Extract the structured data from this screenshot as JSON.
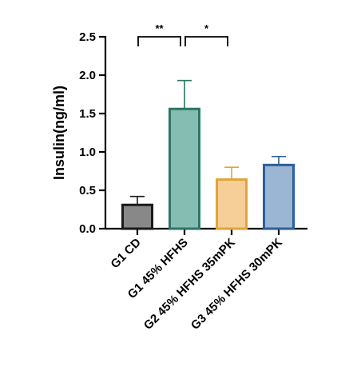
{
  "chart_data": {
    "type": "bar",
    "ylabel": "Insulin(ng/ml)",
    "ylim": [
      0,
      2.5
    ],
    "yticks": [
      "0.0",
      "0.5",
      "1.0",
      "1.5",
      "2.0",
      "2.5"
    ],
    "categories": [
      "G1 CD",
      "G1 45% HFHS",
      "G2 45% HFHS 35mPK",
      "G3 45% HFHS 30mPK"
    ],
    "values": [
      0.31,
      1.56,
      0.64,
      0.83
    ],
    "errors": [
      0.11,
      0.37,
      0.16,
      0.11
    ],
    "bar_fills": [
      "#888888",
      "#86bdb2",
      "#f6cf98",
      "#9bb5d4"
    ],
    "bar_strokes": [
      "#1a1a1a",
      "#2e7564",
      "#e3a33a",
      "#2c5f97"
    ],
    "significance": [
      {
        "from": 0,
        "to": 1,
        "label": "**"
      },
      {
        "from": 1,
        "to": 2,
        "label": "*"
      }
    ],
    "grid": false
  }
}
